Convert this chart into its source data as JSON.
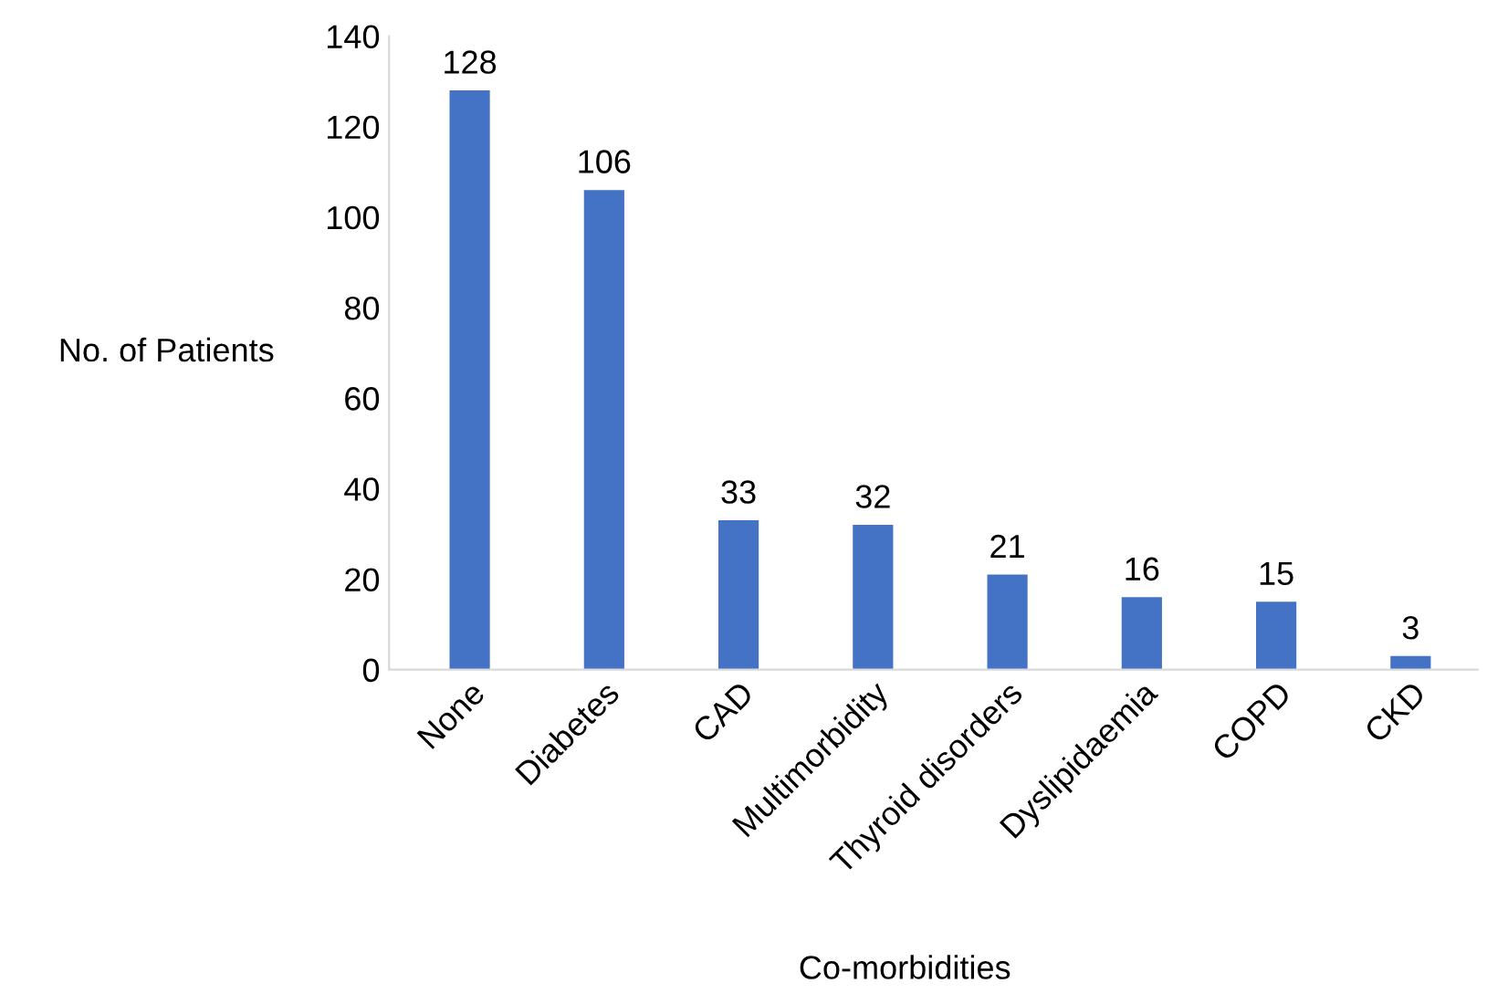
{
  "chart_data": {
    "type": "bar",
    "xlabel": "Co-morbidities",
    "ylabel": "No. of Patients",
    "categories": [
      "None",
      "Diabetes",
      "CAD",
      "Multimorbidity",
      "Thyroid disorders",
      "Dyslipidaemia",
      "COPD",
      "CKD"
    ],
    "values": [
      128,
      106,
      33,
      32,
      21,
      16,
      15,
      3
    ],
    "color": "#4472c4",
    "ylim": [
      0,
      140
    ],
    "yticks": [
      0,
      20,
      40,
      60,
      80,
      100,
      120,
      140
    ],
    "data_labels": true
  }
}
